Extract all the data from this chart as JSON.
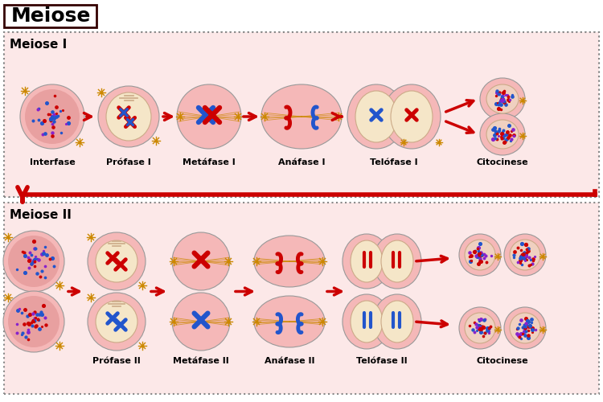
{
  "title": "Meiose",
  "section1_label": "Meiose I",
  "section2_label": "Meiose II",
  "phases1": [
    "Interfase",
    "Prófase I",
    "Metáfase I",
    "Anáfase I",
    "Telófase I",
    "Citocinese"
  ],
  "phases2": [
    "Prófase II",
    "Metáfase II",
    "Anáfase II",
    "Telófase II",
    "Citocinese"
  ],
  "bg_color": "#ffffff",
  "cell_pink": "#f5b8b8",
  "cell_light_pink": "#f9d0d0",
  "nucleus_cream": "#f5e6c8",
  "chr_red": "#cc0000",
  "chr_blue": "#2255cc",
  "centriole_color": "#cc8800",
  "dotted_border": "#888888",
  "arrow_color": "#cc0000",
  "label_color": "#000000",
  "section_bg": "#fce8e8",
  "title_border": "#330000"
}
